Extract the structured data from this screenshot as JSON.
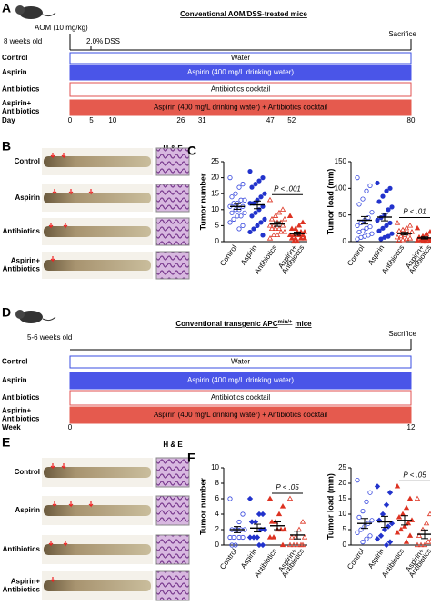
{
  "panels": {
    "a": {
      "label": "A",
      "title": "Conventional AOM/DSS-treated mice",
      "age": "8 weeks old",
      "injection": "AOM (10 mg/kg)",
      "dss": "2.0% DSS",
      "end": "Sacrifice",
      "axis_label": "Day",
      "axis_ticks": [
        0,
        5,
        10,
        26,
        31,
        47,
        52,
        80
      ],
      "rows": [
        {
          "label": [
            "Control"
          ],
          "bar": "Water"
        },
        {
          "label": [
            "Aspirin"
          ],
          "bar": "Aspirin (400 mg/L drinking water)"
        },
        {
          "label": [
            "Antibiotics"
          ],
          "bar": "Antibiotics cocktail"
        },
        {
          "label": [
            "Aspirin+",
            "Antibiotics"
          ],
          "bar": "Aspirin (400 mg/L drinking water) + Antibiotics cocktail"
        }
      ]
    },
    "b": {
      "label": "B",
      "stain": "H & E",
      "rows": [
        [
          "Control"
        ],
        [
          "Aspirin"
        ],
        [
          "Antibiotics"
        ],
        [
          "Aspirin+",
          "Antibiotics"
        ]
      ]
    },
    "c": {
      "label": "C"
    },
    "d": {
      "label": "D",
      "title": "Conventional transgenic APC",
      "title_sup": "min/+",
      "title_end": "mice",
      "age": "5-6 weeks old",
      "end": "Sacrifice",
      "axis_label": "Week",
      "axis_ticks": [
        0,
        12
      ],
      "rows": [
        {
          "label": [
            "Control"
          ],
          "bar": "Water"
        },
        {
          "label": [
            "Aspirin"
          ],
          "bar": "Aspirin (400 mg/L drinking water)"
        },
        {
          "label": [
            "Antibiotics"
          ],
          "bar": "Antibiotics cocktail"
        },
        {
          "label": [
            "Aspirin+",
            "Antibiotics"
          ],
          "bar": "Aspirin (400 mg/L drinking water) + Antibiotics cocktail"
        }
      ]
    },
    "e": {
      "label": "E",
      "stain": "H & E",
      "rows": [
        [
          "Control"
        ],
        [
          "Aspirin"
        ],
        [
          "Antibiotics"
        ],
        [
          "Aspirin+",
          "Antibiotics"
        ]
      ]
    },
    "f": {
      "label": "F"
    }
  },
  "chart_data": [
    {
      "type": "dot",
      "ylabel": "Tumor number",
      "ylim": [
        0,
        25
      ],
      "yticks": [
        0,
        5,
        10,
        15,
        20,
        25
      ],
      "annotation": "P < .001",
      "categories": [
        [
          "Control"
        ],
        [
          "Aspirin"
        ],
        [
          "Antibiotics"
        ],
        [
          "Aspirin+",
          "Antibiotics"
        ]
      ],
      "groups": [
        {
          "color": "#3344dd",
          "marker": "circle",
          "filled": false,
          "values": [
            20,
            18,
            17,
            15,
            14,
            13,
            13,
            12,
            12,
            11,
            11,
            10,
            10,
            9,
            9,
            8,
            8,
            7,
            6,
            5,
            4
          ],
          "mean": 11,
          "error": 0.9
        },
        {
          "color": "#2233cc",
          "marker": "circle",
          "filled": true,
          "values": [
            22,
            20,
            19,
            18,
            17,
            15,
            14,
            13,
            12,
            12,
            11,
            10,
            9,
            8,
            7,
            6,
            5,
            4,
            3,
            2
          ],
          "mean": 11.5,
          "error": 1.2
        },
        {
          "color": "#dd3322",
          "marker": "triangle",
          "filled": false,
          "values": [
            13,
            10,
            9,
            8,
            7,
            7,
            6,
            6,
            5,
            5,
            5,
            4,
            4,
            4,
            3,
            3,
            2,
            2,
            1
          ],
          "mean": 5.5,
          "error": 0.7
        },
        {
          "color": "#dd3322",
          "marker": "triangle",
          "filled": true,
          "values": [
            8,
            6,
            5,
            4,
            4,
            3,
            3,
            3,
            2,
            2,
            2,
            2,
            1,
            1,
            1,
            1,
            0,
            0
          ],
          "mean": 2.5,
          "error": 0.5
        }
      ]
    },
    {
      "type": "dot",
      "ylabel": "Tumor load (mm)",
      "ylim": [
        0,
        150
      ],
      "yticks": [
        0,
        50,
        100,
        150
      ],
      "annotation": "P < .01",
      "categories": [
        [
          "Control"
        ],
        [
          "Aspirin"
        ],
        [
          "Antibiotics"
        ],
        [
          "Aspirin+",
          "Antibiotics"
        ]
      ],
      "groups": [
        {
          "color": "#3344dd",
          "marker": "circle",
          "filled": false,
          "values": [
            120,
            105,
            95,
            80,
            70,
            55,
            45,
            40,
            35,
            30,
            28,
            25,
            20,
            18,
            15,
            12,
            10,
            8,
            5
          ],
          "mean": 40,
          "error": 7
        },
        {
          "color": "#2233cc",
          "marker": "circle",
          "filled": true,
          "values": [
            110,
            100,
            95,
            85,
            75,
            65,
            60,
            50,
            45,
            40,
            35,
            30,
            25,
            20,
            15,
            10,
            8,
            5
          ],
          "mean": 46,
          "error": 7
        },
        {
          "color": "#dd3322",
          "marker": "triangle",
          "filled": false,
          "values": [
            35,
            30,
            25,
            22,
            20,
            18,
            15,
            12,
            10,
            8,
            6,
            5,
            3,
            2
          ],
          "mean": 15,
          "error": 2.5
        },
        {
          "color": "#dd3322",
          "marker": "triangle",
          "filled": true,
          "values": [
            25,
            18,
            14,
            10,
            8,
            6,
            5,
            4,
            3,
            2,
            1,
            0,
            0
          ],
          "mean": 7,
          "error": 2
        }
      ]
    },
    {
      "type": "dot",
      "ylabel": "Tumor number",
      "ylim": [
        0,
        10
      ],
      "yticks": [
        0,
        2,
        4,
        6,
        8,
        10
      ],
      "annotation": "P < .05",
      "categories": [
        [
          "Control"
        ],
        [
          "Aspirin"
        ],
        [
          "Antibiotics"
        ],
        [
          "Aspirin+",
          "Antibiotics"
        ]
      ],
      "groups": [
        {
          "color": "#3344dd",
          "marker": "circle",
          "filled": false,
          "values": [
            6,
            4,
            3,
            2,
            2,
            2,
            2,
            2,
            1,
            1,
            1,
            1,
            0,
            0
          ],
          "mean": 2,
          "error": 0.4
        },
        {
          "color": "#2233cc",
          "marker": "diamond",
          "filled": true,
          "values": [
            6,
            4,
            4,
            3,
            3,
            2,
            2,
            1,
            1,
            1,
            0,
            0
          ],
          "mean": 2.2,
          "error": 0.5
        },
        {
          "color": "#dd3322",
          "marker": "triangle",
          "filled": true,
          "values": [
            6,
            5,
            4,
            3,
            3,
            2,
            2,
            2,
            1,
            1,
            0
          ],
          "mean": 2.5,
          "error": 0.5
        },
        {
          "color": "#dd3322",
          "marker": "triangle",
          "filled": false,
          "values": [
            6,
            3,
            2,
            1,
            1,
            1,
            0,
            0,
            0,
            0,
            0
          ],
          "mean": 1.3,
          "error": 0.5
        }
      ]
    },
    {
      "type": "dot",
      "ylabel": "Tumor load (mm)",
      "ylim": [
        0,
        25
      ],
      "yticks": [
        0,
        5,
        10,
        15,
        20,
        25
      ],
      "annotation": "P < .05",
      "categories": [
        [
          "Control"
        ],
        [
          "Aspirin"
        ],
        [
          "Antibiotics"
        ],
        [
          "Aspirin+",
          "Antibiotics"
        ]
      ],
      "groups": [
        {
          "color": "#3344dd",
          "marker": "circle",
          "filled": false,
          "values": [
            21,
            17,
            14,
            11,
            9,
            8,
            7,
            6,
            5,
            4,
            3,
            2,
            1
          ],
          "mean": 7,
          "error": 1.6
        },
        {
          "color": "#2233cc",
          "marker": "diamond",
          "filled": true,
          "values": [
            19,
            17,
            13,
            10,
            8,
            7,
            6,
            5,
            3,
            2,
            1,
            0
          ],
          "mean": 7.5,
          "error": 1.8
        },
        {
          "color": "#dd3322",
          "marker": "triangle",
          "filled": true,
          "values": [
            19,
            15,
            12,
            10,
            9,
            8,
            7,
            6,
            5,
            4,
            3,
            1
          ],
          "mean": 8,
          "error": 1.5
        },
        {
          "color": "#dd3322",
          "marker": "triangle",
          "filled": false,
          "values": [
            15,
            10,
            7,
            5,
            3,
            2,
            1,
            0,
            0,
            0
          ],
          "mean": 3.5,
          "error": 1.4
        }
      ]
    }
  ]
}
